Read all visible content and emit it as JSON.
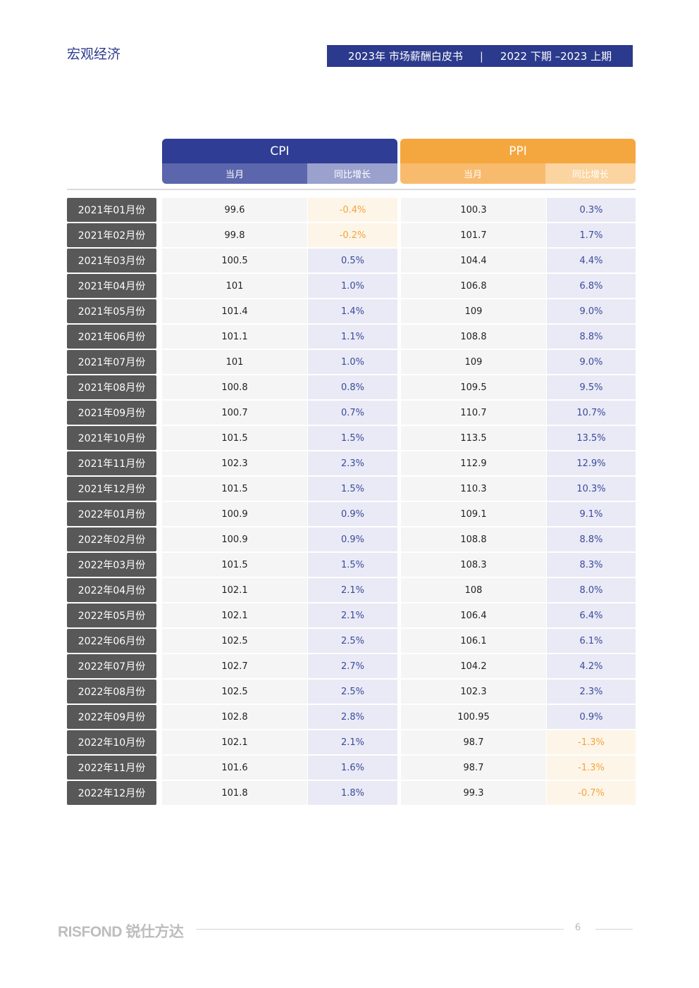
{
  "header": {
    "section_title": "宏观经济",
    "banner_left": "2023年 市场薪酬白皮书",
    "banner_sep": "|",
    "banner_right": "2022 下期 –2023 上期"
  },
  "table": {
    "cpi": {
      "title": "CPI",
      "col_value": "当月",
      "col_growth": "同比增长"
    },
    "ppi": {
      "title": "PPI",
      "col_value": "当月",
      "col_growth": "同比增长"
    },
    "rows": [
      {
        "month": "2021年01月份",
        "cpi": "99.6",
        "cpi_yoy": "-0.4%",
        "ppi": "100.3",
        "ppi_yoy": "0.3%"
      },
      {
        "month": "2021年02月份",
        "cpi": "99.8",
        "cpi_yoy": "-0.2%",
        "ppi": "101.7",
        "ppi_yoy": "1.7%"
      },
      {
        "month": "2021年03月份",
        "cpi": "100.5",
        "cpi_yoy": "0.5%",
        "ppi": "104.4",
        "ppi_yoy": "4.4%"
      },
      {
        "month": "2021年04月份",
        "cpi": "101",
        "cpi_yoy": "1.0%",
        "ppi": "106.8",
        "ppi_yoy": "6.8%"
      },
      {
        "month": "2021年05月份",
        "cpi": "101.4",
        "cpi_yoy": "1.4%",
        "ppi": "109",
        "ppi_yoy": "9.0%"
      },
      {
        "month": "2021年06月份",
        "cpi": "101.1",
        "cpi_yoy": "1.1%",
        "ppi": "108.8",
        "ppi_yoy": "8.8%"
      },
      {
        "month": "2021年07月份",
        "cpi": "101",
        "cpi_yoy": "1.0%",
        "ppi": "109",
        "ppi_yoy": "9.0%"
      },
      {
        "month": "2021年08月份",
        "cpi": "100.8",
        "cpi_yoy": "0.8%",
        "ppi": "109.5",
        "ppi_yoy": "9.5%"
      },
      {
        "month": "2021年09月份",
        "cpi": "100.7",
        "cpi_yoy": "0.7%",
        "ppi": "110.7",
        "ppi_yoy": "10.7%"
      },
      {
        "month": "2021年10月份",
        "cpi": "101.5",
        "cpi_yoy": "1.5%",
        "ppi": "113.5",
        "ppi_yoy": "13.5%"
      },
      {
        "month": "2021年11月份",
        "cpi": "102.3",
        "cpi_yoy": "2.3%",
        "ppi": "112.9",
        "ppi_yoy": "12.9%"
      },
      {
        "month": "2021年12月份",
        "cpi": "101.5",
        "cpi_yoy": "1.5%",
        "ppi": "110.3",
        "ppi_yoy": "10.3%"
      },
      {
        "month": "2022年01月份",
        "cpi": "100.9",
        "cpi_yoy": "0.9%",
        "ppi": "109.1",
        "ppi_yoy": "9.1%"
      },
      {
        "month": "2022年02月份",
        "cpi": "100.9",
        "cpi_yoy": "0.9%",
        "ppi": "108.8",
        "ppi_yoy": "8.8%"
      },
      {
        "month": "2022年03月份",
        "cpi": "101.5",
        "cpi_yoy": "1.5%",
        "ppi": "108.3",
        "ppi_yoy": "8.3%"
      },
      {
        "month": "2022年04月份",
        "cpi": "102.1",
        "cpi_yoy": "2.1%",
        "ppi": "108",
        "ppi_yoy": "8.0%"
      },
      {
        "month": "2022年05月份",
        "cpi": "102.1",
        "cpi_yoy": "2.1%",
        "ppi": "106.4",
        "ppi_yoy": "6.4%"
      },
      {
        "month": "2022年06月份",
        "cpi": "102.5",
        "cpi_yoy": "2.5%",
        "ppi": "106.1",
        "ppi_yoy": "6.1%"
      },
      {
        "month": "2022年07月份",
        "cpi": "102.7",
        "cpi_yoy": "2.7%",
        "ppi": "104.2",
        "ppi_yoy": "4.2%"
      },
      {
        "month": "2022年08月份",
        "cpi": "102.5",
        "cpi_yoy": "2.5%",
        "ppi": "102.3",
        "ppi_yoy": "2.3%"
      },
      {
        "month": "2022年09月份",
        "cpi": "102.8",
        "cpi_yoy": "2.8%",
        "ppi": "100.95",
        "ppi_yoy": "0.9%"
      },
      {
        "month": "2022年10月份",
        "cpi": "102.1",
        "cpi_yoy": "2.1%",
        "ppi": "98.7",
        "ppi_yoy": "-1.3%"
      },
      {
        "month": "2022年11月份",
        "cpi": "101.6",
        "cpi_yoy": "1.6%",
        "ppi": "98.7",
        "ppi_yoy": "-1.3%"
      },
      {
        "month": "2022年12月份",
        "cpi": "101.8",
        "cpi_yoy": "1.8%",
        "ppi": "99.3",
        "ppi_yoy": "-0.7%"
      }
    ]
  },
  "colors": {
    "brand_blue": "#2b3a8c",
    "brand_orange": "#f5a73f",
    "positive_text": "#3b4a9c",
    "negative_text": "#f2a43c"
  },
  "footer": {
    "logo": "RISFOND 锐仕方达",
    "page_number": "6"
  }
}
